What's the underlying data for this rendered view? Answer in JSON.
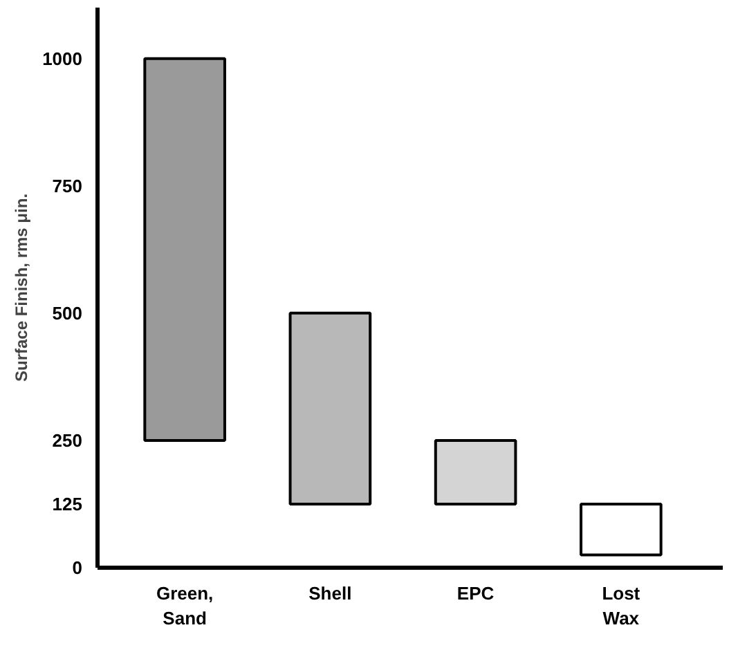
{
  "chart_data": {
    "type": "bar",
    "ylabel": "Surface Finish, rms μin.",
    "categories": [
      "Green,\nSand",
      "Shell",
      "EPC",
      "Lost\nWax"
    ],
    "base": [
      250,
      125,
      125,
      25
    ],
    "values": [
      750,
      375,
      125,
      100
    ],
    "colors": [
      "#9a9a9a",
      "#b8b8b8",
      "#d4d4d4",
      "#ffffff"
    ],
    "ylim": [
      0,
      1100
    ],
    "yticks": [
      0,
      125,
      250,
      500,
      750,
      1000
    ],
    "grid": false
  }
}
